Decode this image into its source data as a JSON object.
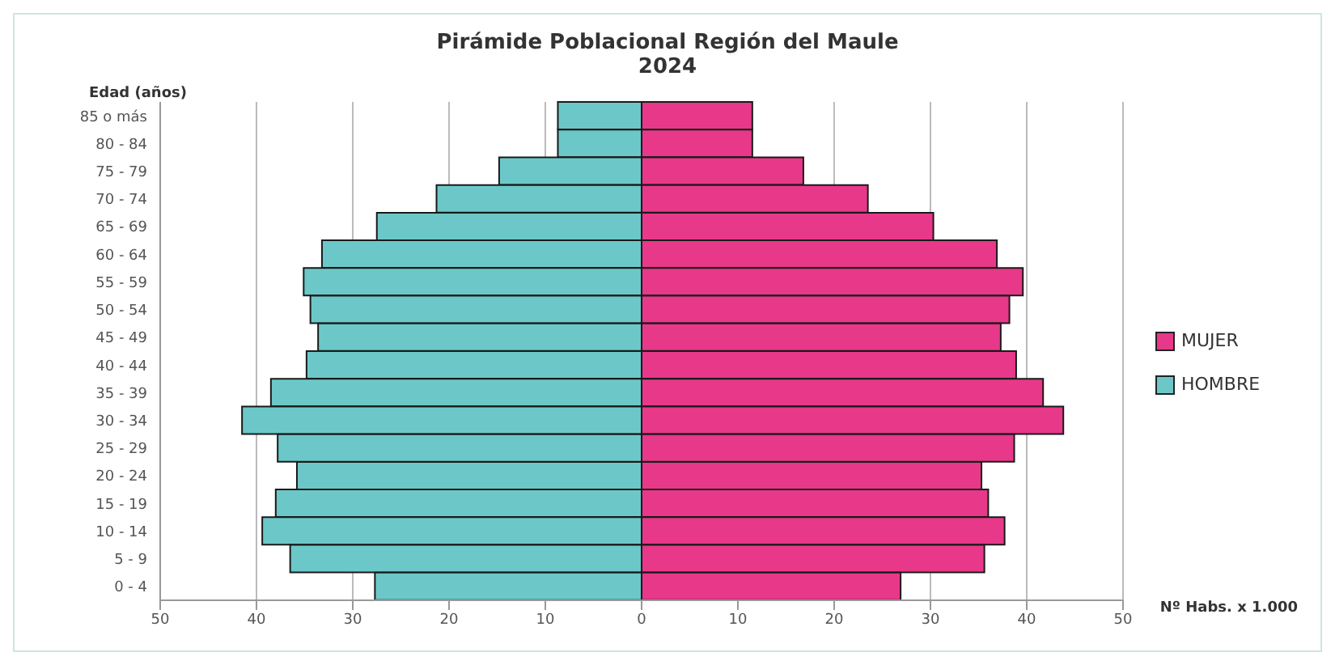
{
  "chart_data": {
    "type": "bar",
    "orientation": "horizontal",
    "stacked": true,
    "title": "Pirámide Poblacional Región del Maule",
    "subtitle": "2024",
    "ylabel": "Edad (años)",
    "annotations": [
      "Nº Habs. x 1.000"
    ],
    "categories": [
      "85 o más",
      "80 - 84",
      "75 - 79",
      "70 - 74",
      "65 - 69",
      "60 - 64",
      "55 - 59",
      "50 - 54",
      "45 - 49",
      "40 - 44",
      "35 - 39",
      "30 - 34",
      "25 - 29",
      "20 - 24",
      "15 - 19",
      "10 - 14",
      "5 - 9",
      "0 - 4"
    ],
    "series": [
      {
        "name": "MUJER",
        "color": "#e8388a",
        "values": [
          11.5,
          11.5,
          16.8,
          23.5,
          30.3,
          36.9,
          39.6,
          38.2,
          37.3,
          38.9,
          41.7,
          43.8,
          38.7,
          35.3,
          36.0,
          37.7,
          35.6,
          26.9
        ]
      },
      {
        "name": "HOMBRE",
        "color": "#6cc8c8",
        "values": [
          -8.7,
          -8.7,
          -14.8,
          -21.3,
          -27.5,
          -33.2,
          -35.1,
          -34.4,
          -33.6,
          -34.8,
          -38.5,
          -41.5,
          -37.8,
          -35.8,
          -38.0,
          -39.4,
          -36.5,
          -27.7
        ]
      }
    ],
    "xlim": [
      -50,
      50
    ],
    "xticks": [
      {
        "value": -50,
        "label": "50"
      },
      {
        "value": -40,
        "label": "40"
      },
      {
        "value": -30,
        "label": "30"
      },
      {
        "value": -20,
        "label": "20"
      },
      {
        "value": -10,
        "label": "10"
      },
      0,
      10,
      20,
      30,
      40,
      50
    ],
    "grid": "x",
    "legend": "right"
  }
}
